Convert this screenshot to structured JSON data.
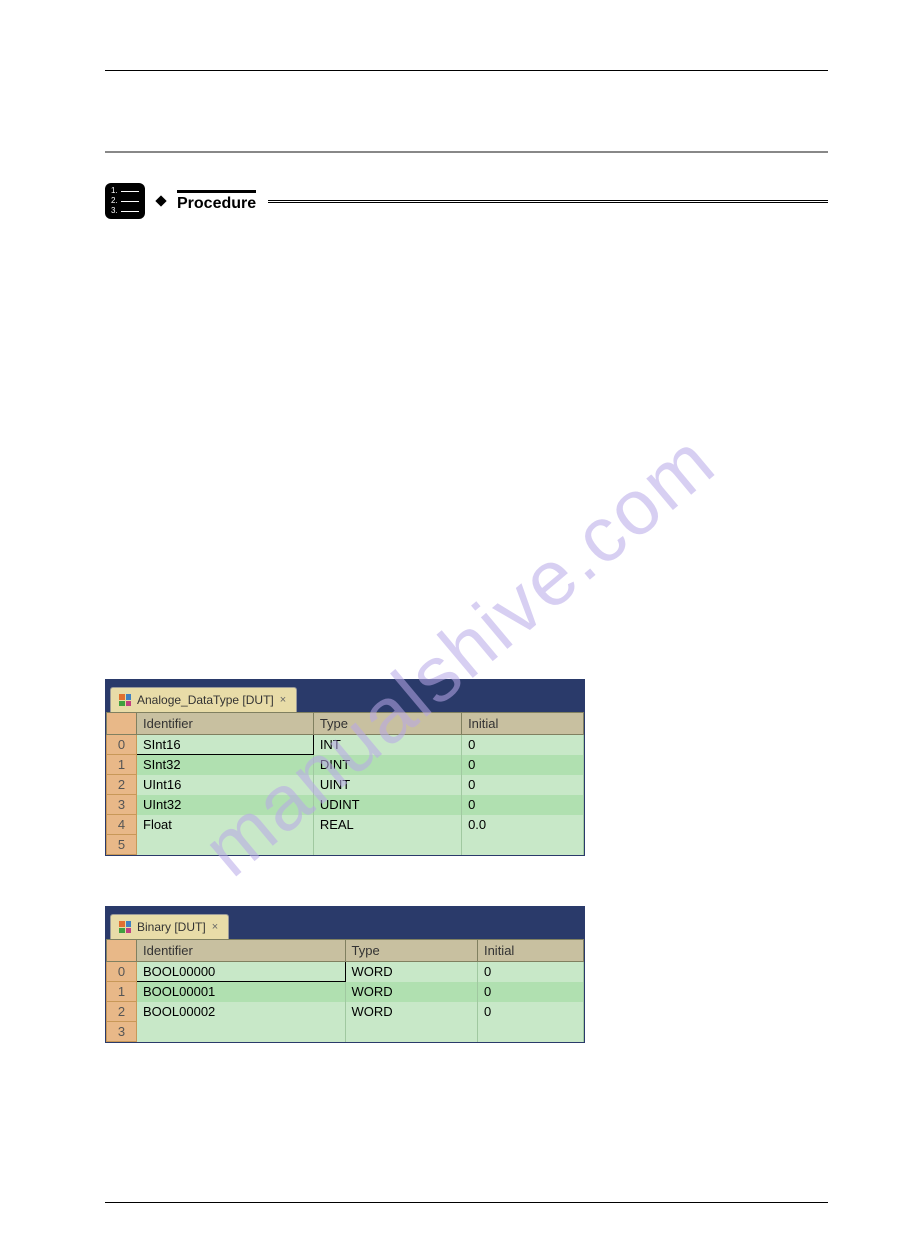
{
  "procedure_label": "Procedure",
  "watermark": "manualshive.com",
  "table1": {
    "tab": "Analoge_DataType [DUT]",
    "headers": [
      "Identifier",
      "Type",
      "Initial"
    ],
    "rows": [
      {
        "n": "0",
        "id": "SInt16",
        "type": "INT",
        "init": "0"
      },
      {
        "n": "1",
        "id": "SInt32",
        "type": "DINT",
        "init": "0"
      },
      {
        "n": "2",
        "id": "UInt16",
        "type": "UINT",
        "init": "0"
      },
      {
        "n": "3",
        "id": "UInt32",
        "type": "UDINT",
        "init": "0"
      },
      {
        "n": "4",
        "id": "Float",
        "type": "REAL",
        "init": "0.0"
      },
      {
        "n": "5",
        "id": "",
        "type": "",
        "init": ""
      }
    ]
  },
  "table2": {
    "tab": "Binary [DUT]",
    "headers": [
      "Identifier",
      "Type",
      "Initial"
    ],
    "rows": [
      {
        "n": "0",
        "id": "BOOL00000",
        "type": "WORD",
        "init": "0"
      },
      {
        "n": "1",
        "id": "BOOL00001",
        "type": "WORD",
        "init": "0"
      },
      {
        "n": "2",
        "id": "BOOL00002",
        "type": "WORD",
        "init": "0"
      },
      {
        "n": "3",
        "id": "",
        "type": "",
        "init": ""
      }
    ]
  }
}
